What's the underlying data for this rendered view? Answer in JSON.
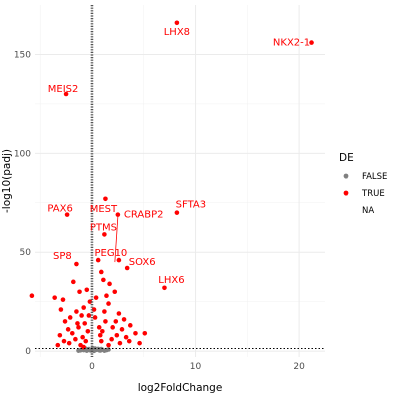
{
  "chart_data": {
    "type": "scatter",
    "xlabel": "log2FoldChange",
    "ylabel": "-log10(padj)",
    "xlim": [
      -5.5,
      22.5
    ],
    "ylim": [
      -3,
      175
    ],
    "x_ticks": [
      0,
      10,
      20
    ],
    "y_ticks": [
      0,
      50,
      100,
      150
    ],
    "grid": true,
    "colors": {
      "TRUE": "#ff0000",
      "FALSE": "#808080",
      "label": "#ff0000",
      "vline": "#555555",
      "hline": "#000000"
    },
    "legend": {
      "title": "DE",
      "placement": "right",
      "entries": [
        {
          "label": "FALSE",
          "color": "#808080"
        },
        {
          "label": "TRUE",
          "color": "#ff0000"
        },
        {
          "label": "NA",
          "color": ""
        }
      ]
    },
    "reference_lines": {
      "vertical_x": 0,
      "horizontal_y": 1.3
    },
    "labeled_points": [
      {
        "gene": "LHX8",
        "x": 8.2,
        "y": 166
      },
      {
        "gene": "NKX2-1",
        "x": 21.2,
        "y": 156
      },
      {
        "gene": "MEIS2",
        "x": -2.5,
        "y": 130
      },
      {
        "gene": "SFTA3",
        "x": 8.2,
        "y": 70
      },
      {
        "gene": "PAX6",
        "x": -2.4,
        "y": 69
      },
      {
        "gene": "MEST",
        "x": 1.3,
        "y": 77
      },
      {
        "gene": "CRABP2",
        "x": 2.5,
        "y": 69
      },
      {
        "gene": "PTMS",
        "x": 1.2,
        "y": 59
      },
      {
        "gene": "PEG10",
        "x": 2.6,
        "y": 46
      },
      {
        "gene": "SP8",
        "x": -1.5,
        "y": 44
      },
      {
        "gene": "SOX6",
        "x": 3.4,
        "y": 42
      },
      {
        "gene": "LHX6",
        "x": 7,
        "y": 32
      }
    ],
    "points_true": [
      [
        -5.8,
        28
      ],
      [
        -3.6,
        27
      ],
      [
        -2.8,
        26
      ],
      [
        -3.0,
        21
      ],
      [
        -2.1,
        17
      ],
      [
        -2.6,
        15
      ],
      [
        -1.8,
        35
      ],
      [
        -1.2,
        30
      ],
      [
        -0.8,
        22
      ],
      [
        -1.0,
        18
      ],
      [
        -1.5,
        20
      ],
      [
        -0.5,
        31
      ],
      [
        0.6,
        46
      ],
      [
        0.9,
        40
      ],
      [
        1.1,
        36
      ],
      [
        1.7,
        34
      ],
      [
        1.4,
        28
      ],
      [
        2.2,
        30
      ],
      [
        1.6,
        24
      ],
      [
        2.6,
        19
      ],
      [
        3.1,
        16
      ],
      [
        3.7,
        13
      ],
      [
        4.2,
        9
      ],
      [
        5.1,
        9
      ],
      [
        -2.3,
        11
      ],
      [
        -3.1,
        8
      ],
      [
        -2.7,
        5
      ],
      [
        -1.9,
        9
      ],
      [
        -1.3,
        12
      ],
      [
        -0.7,
        14
      ],
      [
        -0.4,
        10
      ],
      [
        -0.9,
        7
      ],
      [
        0.3,
        17
      ],
      [
        0.7,
        12
      ],
      [
        1.0,
        10
      ],
      [
        1.3,
        15
      ],
      [
        2.0,
        12
      ],
      [
        2.4,
        8
      ],
      [
        2.9,
        11
      ],
      [
        3.3,
        7
      ],
      [
        -0.2,
        25
      ],
      [
        0.4,
        27
      ],
      [
        -1.6,
        6
      ],
      [
        -2.2,
        4
      ],
      [
        -1.1,
        3
      ],
      [
        -0.6,
        5
      ],
      [
        0.9,
        5
      ],
      [
        1.9,
        6
      ],
      [
        2.7,
        4
      ],
      [
        3.6,
        5
      ],
      [
        -3.3,
        3
      ],
      [
        4.6,
        4
      ],
      [
        1.2,
        20
      ],
      [
        0.2,
        21
      ],
      [
        -0.3,
        18
      ],
      [
        2.3,
        15
      ],
      [
        -1.4,
        14
      ],
      [
        0.8,
        8
      ],
      [
        1.6,
        3
      ],
      [
        -0.8,
        2
      ]
    ],
    "points_false": [
      [
        -0.8,
        0.5
      ],
      [
        -0.5,
        0.2
      ],
      [
        -0.3,
        1.0
      ],
      [
        -0.1,
        0.3
      ],
      [
        0.0,
        0.8
      ],
      [
        0.2,
        0.1
      ],
      [
        0.4,
        0.6
      ],
      [
        0.6,
        1.1
      ],
      [
        0.8,
        0.3
      ],
      [
        1.0,
        0.7
      ],
      [
        1.2,
        0.2
      ],
      [
        -0.6,
        1.2
      ],
      [
        -0.9,
        0.9
      ],
      [
        0.3,
        1.3
      ],
      [
        0.7,
        0.4
      ],
      [
        -0.2,
        0.5
      ],
      [
        0.1,
        1.4
      ],
      [
        0.5,
        0.9
      ],
      [
        -0.4,
        0.7
      ],
      [
        0.9,
        1.0
      ],
      [
        1.4,
        0.5
      ],
      [
        -1.1,
        0.4
      ],
      [
        1.6,
        0.8
      ],
      [
        -1.3,
        0.2
      ]
    ]
  }
}
